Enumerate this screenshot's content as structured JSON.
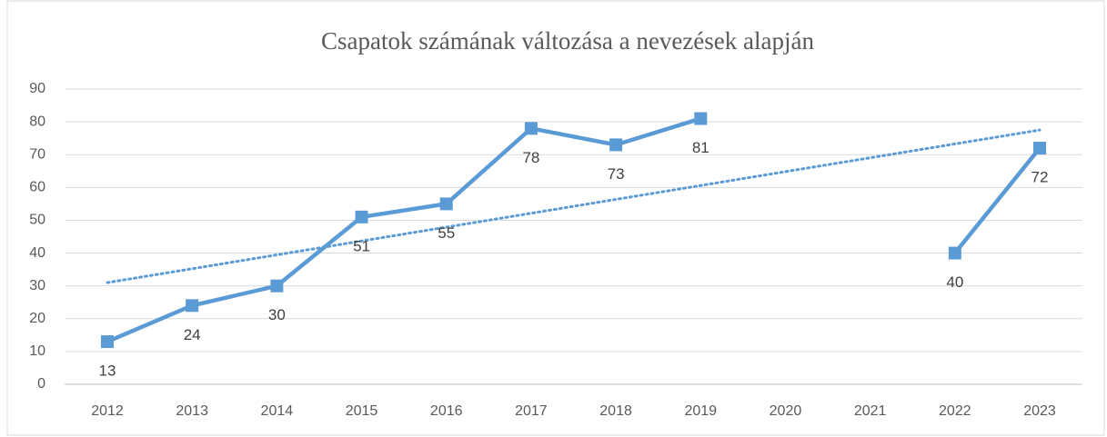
{
  "chart_data": {
    "type": "line",
    "title": "Csapatok számának változása a nevezések alapján",
    "categories": [
      "2012",
      "2013",
      "2014",
      "2015",
      "2016",
      "2017",
      "2018",
      "2019",
      "2020",
      "2021",
      "2022",
      "2023"
    ],
    "series": [
      {
        "color": "#5b9bd5",
        "values": [
          13,
          24,
          30,
          51,
          55,
          78,
          73,
          81,
          null,
          null,
          40,
          72
        ]
      }
    ],
    "trendline": {
      "values": [
        31,
        77.5
      ],
      "color": "#5b9bd5"
    },
    "ylim": [
      0,
      90
    ],
    "yticks": [
      0,
      10,
      20,
      30,
      40,
      50,
      60,
      70,
      80,
      90
    ],
    "grid": true
  }
}
